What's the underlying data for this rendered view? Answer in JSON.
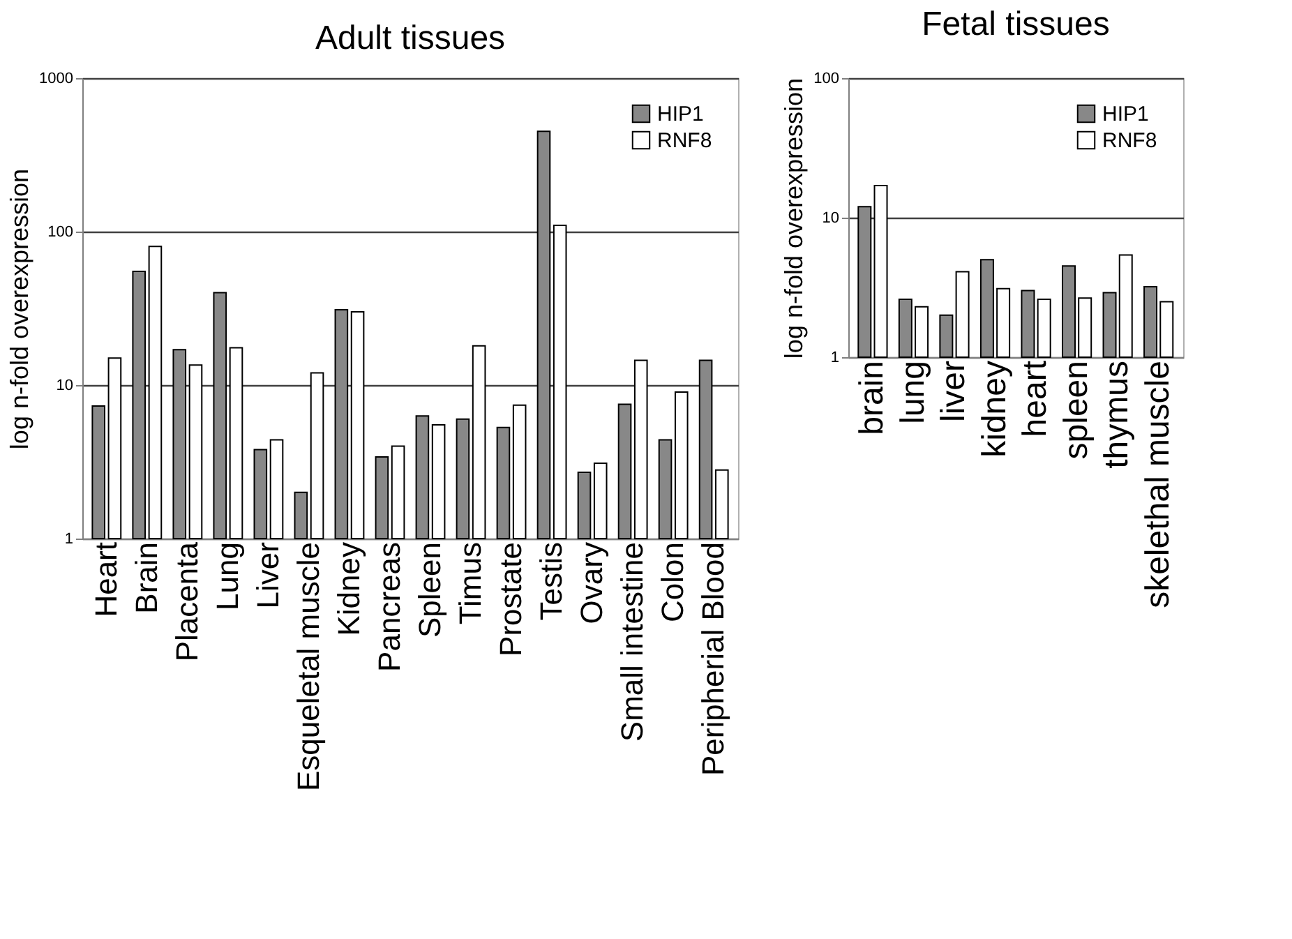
{
  "chart_data": [
    {
      "type": "bar",
      "title": "Adult tissues",
      "ylabel": "log n-fold overexpression",
      "log": true,
      "grid": "y",
      "legend": "top right",
      "categories": [
        "Heart",
        "Brain",
        "Placenta",
        "Lung",
        "Liver",
        "Esqueletal muscle",
        "Kidney",
        "Pancreas",
        "Spleen",
        "Timus",
        "Prostate",
        "Testis",
        "Ovary",
        "Small intestine",
        "Colon",
        "Peripherial Blood"
      ],
      "ylim": [
        1,
        1000
      ],
      "yticks": [
        1,
        10,
        100,
        1000
      ],
      "series": [
        {
          "name": "HIP1",
          "color": "#888888",
          "values": [
            7.3,
            55,
            17,
            40,
            3.8,
            2.0,
            31,
            3.4,
            6.3,
            6.0,
            5.3,
            450,
            2.7,
            7.5,
            4.4,
            14.5
          ]
        },
        {
          "name": "RNF8",
          "color": "#ffffff",
          "values": [
            15,
            80,
            13.5,
            17.5,
            4.4,
            12,
            30,
            4.0,
            5.5,
            18,
            7.4,
            110,
            3.1,
            14.5,
            9,
            2.8
          ]
        }
      ]
    },
    {
      "type": "bar",
      "title": "Fetal tissues",
      "ylabel": "log n-fold overexpression",
      "log": true,
      "grid": "y",
      "legend": "top right",
      "categories": [
        "brain",
        "lung",
        "liver",
        "kidney",
        "heart",
        "spleen",
        "thymus",
        "skelethal muscle"
      ],
      "ylim": [
        1,
        100
      ],
      "yticks": [
        1,
        10,
        100
      ],
      "series": [
        {
          "name": "HIP1",
          "color": "#888888",
          "values": [
            12,
            2.6,
            2.0,
            5.0,
            3.0,
            4.5,
            2.9,
            3.2
          ]
        },
        {
          "name": "RNF8",
          "color": "#ffffff",
          "values": [
            17,
            2.3,
            4.1,
            3.1,
            2.6,
            2.65,
            5.4,
            2.5
          ]
        }
      ]
    }
  ]
}
